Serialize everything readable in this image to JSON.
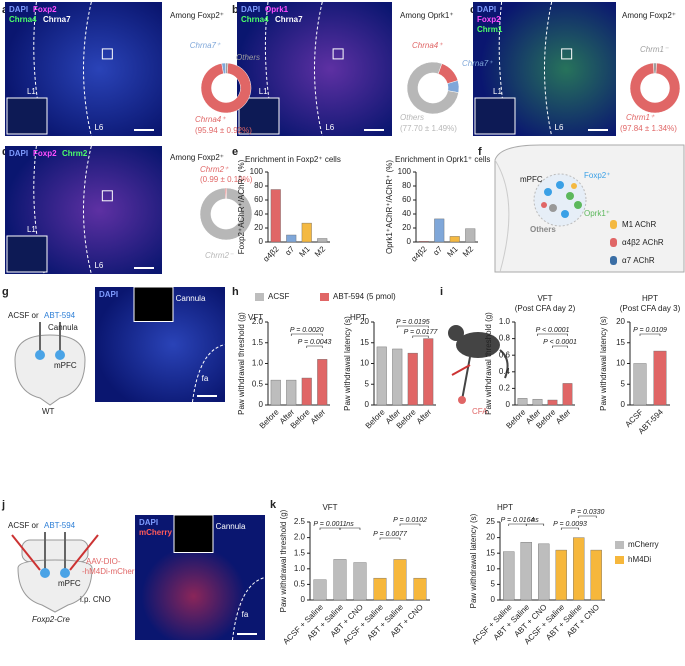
{
  "panel_labels": [
    "a",
    "b",
    "c",
    "d",
    "e",
    "f",
    "g",
    "h",
    "i",
    "j",
    "k"
  ],
  "micrographs": {
    "a": {
      "stains": [
        "DAPI",
        "Foxp2",
        "Chrna4",
        "Chrna7"
      ],
      "layers": [
        "L1",
        "L6"
      ]
    },
    "b": {
      "stains": [
        "DAPI",
        "Oprk1",
        "Chrna4",
        "Chrna7"
      ],
      "layers": [
        "L1",
        "L6"
      ]
    },
    "c": {
      "stains": [
        "DAPI",
        "Foxp2",
        "Chrm1"
      ],
      "layers": [
        "L1",
        "L6"
      ]
    },
    "d": {
      "stains": [
        "DAPI",
        "Foxp2",
        "Chrm2"
      ],
      "layers": [
        "L1",
        "L6"
      ]
    },
    "g": {
      "stains": [
        "DAPI"
      ],
      "labels": [
        "Cannula",
        "fa"
      ]
    },
    "j": {
      "stains": [
        "DAPI",
        "mCherry"
      ],
      "labels": [
        "Cannula",
        "fa"
      ]
    }
  },
  "schematics": {
    "f": {
      "region": "mPFC",
      "cells": [
        "Foxp2⁺",
        "Oprk1⁺",
        "Others"
      ],
      "receptors": [
        "M1 AChR",
        "α4β2 AChR",
        "α7 AChR"
      ]
    },
    "g": {
      "injection": [
        "ACSF or",
        "ABT-594"
      ],
      "cannula": "Cannula",
      "region": "mPFC",
      "mouse": "WT"
    },
    "i": {
      "treatment": "CFA"
    },
    "j": {
      "injection": [
        "ACSF or",
        "ABT-594"
      ],
      "virus": [
        "AAV-DIO-",
        "-hM4Di-mCherry"
      ],
      "region": "mPFC",
      "drug": "i.p. CNO",
      "mouse": "Foxp2-Cre"
    }
  },
  "chart_data": [
    {
      "type": "pie",
      "title": "Among Foxp2⁺",
      "categories": [
        "Chrna7⁺",
        "Others",
        "Chrna4⁺"
      ],
      "values": [
        2.5,
        1.56,
        95.94
      ],
      "colors": [
        "#7fa7d9",
        "#9e9e9e",
        "#e06666"
      ],
      "annotation": "(95.94 ± 0.92%)"
    },
    {
      "type": "pie",
      "title": "Among Oprk1⁺",
      "categories": [
        "Chrna4⁺",
        "Chrna7⁺",
        "Others"
      ],
      "values": [
        14.8,
        7.5,
        77.7
      ],
      "colors": [
        "#e06666",
        "#7fa7d9",
        "#b7b7b7"
      ],
      "annotation": "(77.70 ± 1.49%)"
    },
    {
      "type": "pie",
      "title": "Among Foxp2⁺",
      "categories": [
        "Chrm1⁻",
        "Chrm1⁺"
      ],
      "values": [
        2.16,
        97.84
      ],
      "colors": [
        "#9e9e9e",
        "#e06666"
      ],
      "annotation": "(97.84 ± 1.34%)"
    },
    {
      "type": "pie",
      "title": "Among Foxp2⁺",
      "categories": [
        "Chrm2⁺",
        "Chrm2⁻"
      ],
      "values": [
        0.99,
        99.01
      ],
      "colors": [
        "#e06666",
        "#b7b7b7"
      ],
      "annotation": "(0.99 ± 0.19%)"
    },
    {
      "type": "bar",
      "title": "Enrichment in Foxp2⁺ cells",
      "ylabel": "Foxp2⁺AChR⁺/AChR⁺ (%)",
      "categories": [
        "α4β2",
        "α7",
        "M1",
        "M2"
      ],
      "values": [
        75,
        10,
        27,
        5
      ],
      "colors": [
        "#e06666",
        "#7fa7d9",
        "#f4b942",
        "#b7b7b7"
      ],
      "ylim": [
        0,
        100
      ],
      "yticks": [
        0,
        20,
        40,
        60,
        80,
        100
      ]
    },
    {
      "type": "bar",
      "title": "Enrichment in Oprk1⁺ cells",
      "ylabel": "Oprk1⁺AChR⁺/AChR⁺ (%)",
      "categories": [
        "α4β2",
        "α7",
        "M1",
        "M2"
      ],
      "values": [
        1,
        33,
        8,
        19
      ],
      "colors": [
        "#e06666",
        "#7fa7d9",
        "#f4b942",
        "#b7b7b7"
      ],
      "ylim": [
        0,
        100
      ],
      "yticks": [
        0,
        20,
        40,
        60,
        80,
        100
      ]
    },
    {
      "type": "bar",
      "title": "VFT",
      "ylabel": "Paw withdrawal threshold (g)",
      "categories": [
        "Before",
        "After",
        "Before",
        "After"
      ],
      "values": [
        0.6,
        0.6,
        0.65,
        1.1
      ],
      "colors": [
        "#bdbdbd",
        "#bdbdbd",
        "#e06666",
        "#e06666"
      ],
      "ylim": [
        0,
        2
      ],
      "yticks": [
        0,
        0.5,
        {
          "value": 1,
          "label": "1.0"
        },
        1.5,
        {
          "value": 2,
          "label": "2.0"
        }
      ],
      "annotations": [
        "P = 0.0020",
        "P = 0.0043"
      ],
      "legend": [
        {
          "name": "ACSF",
          "color": "#bdbdbd"
        },
        {
          "name": "ABT-594 (5 pmol)",
          "color": "#e06666"
        }
      ]
    },
    {
      "type": "bar",
      "title": "HPT",
      "ylabel": "Paw withdrawal latency (s)",
      "categories": [
        "Before",
        "After",
        "Before",
        "After"
      ],
      "values": [
        14,
        13.5,
        12.5,
        16
      ],
      "colors": [
        "#bdbdbd",
        "#bdbdbd",
        "#e06666",
        "#e06666"
      ],
      "ylim": [
        0,
        20
      ],
      "yticks": [
        0,
        5,
        10,
        15,
        20
      ],
      "annotations": [
        "P = 0.0195",
        "P = 0.0177"
      ]
    },
    {
      "type": "bar",
      "title": "VFT",
      "subtitle": "(Post CFA day 2)",
      "ylabel": "Paw withdrawal threshold (g)",
      "categories": [
        "Before",
        "After",
        "Before",
        "After"
      ],
      "values": [
        0.08,
        0.07,
        0.06,
        0.26
      ],
      "colors": [
        "#bdbdbd",
        "#bdbdbd",
        "#e06666",
        "#e06666"
      ],
      "ylim": [
        0,
        1
      ],
      "yticks": [
        0,
        0.2,
        0.4,
        0.6,
        0.8,
        {
          "value": 1,
          "label": "1.0"
        }
      ],
      "annotations": [
        "P < 0.0001",
        "P < 0.0001"
      ]
    },
    {
      "type": "bar",
      "title": "HPT",
      "subtitle": "(Post CFA day 3)",
      "ylabel": "Paw withdrawal latency (s)",
      "categories": [
        "ACSF",
        "ABT-594"
      ],
      "values": [
        10,
        13
      ],
      "colors": [
        "#bdbdbd",
        "#e06666"
      ],
      "ylim": [
        0,
        20
      ],
      "yticks": [
        0,
        5,
        10,
        15,
        20
      ],
      "annotations": [
        "P = 0.0109"
      ]
    },
    {
      "type": "bar",
      "title": "VFT",
      "ylabel": "Paw withdrawal threshold (g)",
      "categories": [
        "ACSF + Saline",
        "ABT + Saline",
        "ABT + CNO",
        "ACSF + Saline",
        "ABT + Saline",
        "ABT + CNO"
      ],
      "values": [
        0.65,
        1.3,
        1.2,
        0.7,
        1.3,
        0.7
      ],
      "colors": [
        "#bdbdbd",
        "#bdbdbd",
        "#bdbdbd",
        "#f6b73c",
        "#f6b73c",
        "#f6b73c"
      ],
      "ylim": [
        0,
        2.5
      ],
      "yticks": [
        0,
        0.5,
        {
          "value": 1,
          "label": "1.0"
        },
        1.5,
        {
          "value": 2,
          "label": "2.0"
        },
        2.5
      ],
      "annotations": [
        "P = 0.0011",
        "ns",
        "P = 0.0102",
        "P = 0.0077"
      ]
    },
    {
      "type": "bar",
      "title": "HPT",
      "ylabel": "Paw withdrawal latency (s)",
      "categories": [
        "ACSF + Saline",
        "ABT + Saline",
        "ABT + CNO",
        "ACSF + Saline",
        "ABT + Saline",
        "ABT + CNO"
      ],
      "values": [
        15.5,
        18.5,
        18,
        16,
        20,
        16
      ],
      "colors": [
        "#bdbdbd",
        "#bdbdbd",
        "#bdbdbd",
        "#f6b73c",
        "#f6b73c",
        "#f6b73c"
      ],
      "ylim": [
        0,
        25
      ],
      "yticks": [
        0,
        5,
        10,
        15,
        20,
        25
      ],
      "annotations": [
        "P = 0.0164",
        "ns",
        "P = 0.0330",
        "P = 0.0093"
      ],
      "legend": [
        {
          "name": "mCherry",
          "color": "#bdbdbd"
        },
        {
          "name": "hM4Di",
          "color": "#f6b73c"
        }
      ]
    }
  ]
}
